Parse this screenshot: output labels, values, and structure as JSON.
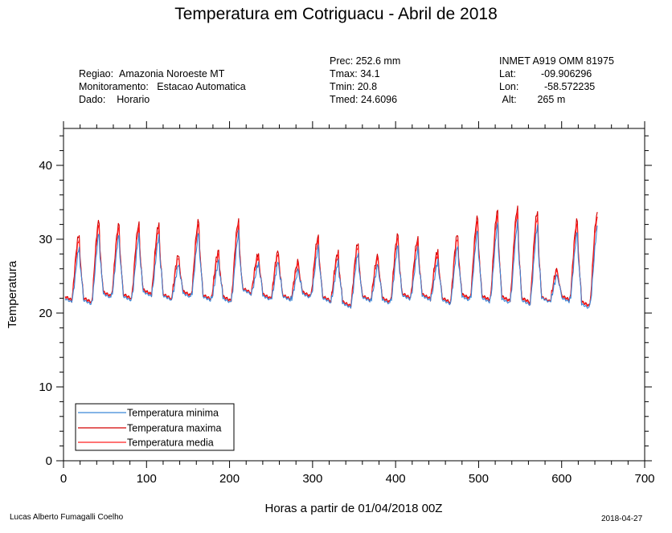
{
  "title": "Temperatura em Cotriguacu - Abril de 2018",
  "info": {
    "regiao_label": "Regiao:",
    "regiao": "Amazonia Noroeste MT",
    "monit_label": "Monitoramento:",
    "monit": "Estacao Automatica",
    "dado_label": "Dado:",
    "dado": "Horario",
    "prec": "Prec: 252.6 mm",
    "tmax": "Tmax: 34.1",
    "tmin": "Tmin: 20.8",
    "tmed": "Tmed: 24.6096",
    "station": "INMET A919 OMM 81975",
    "lat_label": "Lat:",
    "lat": "-09.906296",
    "lon_label": "Lon:",
    "lon": "-58.572235",
    "alt_label": "Alt:",
    "alt": "265 m"
  },
  "footer": {
    "author": "Lucas Alberto Fumagalli Coelho",
    "date": "2018-04-27"
  },
  "colors": {
    "min": "#3a86d6",
    "max": "#d40000",
    "med": "#ff2020"
  },
  "chart_data": {
    "type": "line",
    "title": "Temperatura em Cotriguacu - Abril de 2018",
    "xlabel": "Horas a partir de 01/04/2018 00Z",
    "ylabel": "Temperatura",
    "xlim": [
      0,
      700
    ],
    "ylim": [
      0,
      45
    ],
    "xticks": [
      0,
      100,
      200,
      300,
      400,
      500,
      600,
      700
    ],
    "yticks": [
      0,
      10,
      20,
      30,
      40
    ],
    "legend_position": "bottom-left",
    "series": [
      {
        "name": "Temperatura minima",
        "color": "#3a86d6"
      },
      {
        "name": "Temperatura maxima",
        "color": "#d40000"
      },
      {
        "name": "Temperatura media",
        "color": "#ff2020"
      }
    ],
    "daily": {
      "hours_per_day": 24,
      "start_hour": 2,
      "end_hour": 643,
      "night_min": [
        21.8,
        21.5,
        22.3,
        22.0,
        22.6,
        22.0,
        22.4,
        21.9,
        21.7,
        22.8,
        22.0,
        21.9,
        22.3,
        21.7,
        21.0,
        21.8,
        21.5,
        22.1,
        22.0,
        21.5,
        22.0,
        21.8,
        21.7,
        21.5,
        21.6,
        21.8,
        21.0
      ],
      "peak_max": [
        30.6,
        32.5,
        32.0,
        32.0,
        32.0,
        27.9,
        32.5,
        28.4,
        32.4,
        28.0,
        28.4,
        27.0,
        30.3,
        28.2,
        29.5,
        27.8,
        30.6,
        30.0,
        28.4,
        30.7,
        33.0,
        33.8,
        34.1,
        33.7,
        26.0,
        32.6,
        33.4
      ],
      "offset_min": [
        -2.2,
        -2.2,
        -2.0,
        -2.2,
        -2.2,
        -1.6,
        -2.2,
        -1.8,
        -2.2,
        -1.6,
        -1.8,
        -1.5,
        -1.9,
        -1.7,
        -1.8,
        -1.6,
        -2.0,
        -1.9,
        -1.8,
        -2.0,
        -2.4,
        -2.4,
        -2.6,
        -2.5,
        -1.0,
        -2.2,
        -2.6
      ],
      "offset_med": [
        -0.8,
        -0.8,
        -0.7,
        -0.8,
        -0.8,
        -0.5,
        -0.8,
        -0.6,
        -0.8,
        -0.5,
        -0.6,
        -0.5,
        -0.7,
        -0.6,
        -0.6,
        -0.5,
        -0.7,
        -0.7,
        -0.6,
        -0.7,
        -0.9,
        -0.9,
        -0.9,
        -0.9,
        -0.3,
        -0.8,
        -0.9
      ]
    }
  }
}
